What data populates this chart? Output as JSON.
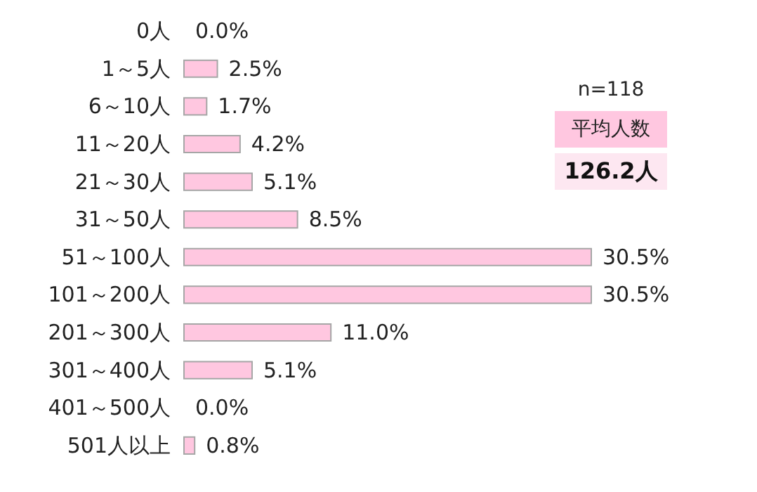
{
  "chart_data": {
    "type": "bar",
    "orientation": "horizontal",
    "categories": [
      "0人",
      "1～5人",
      "6～10人",
      "11～20人",
      "21～30人",
      "31～50人",
      "51～100人",
      "101～200人",
      "201～300人",
      "301～400人",
      "401～500人",
      "501人以上"
    ],
    "values": [
      0.0,
      2.5,
      1.7,
      4.2,
      5.1,
      8.5,
      30.5,
      30.5,
      11.0,
      5.1,
      0.0,
      0.8
    ],
    "value_labels": [
      "0.0%",
      "2.5%",
      "1.7%",
      "4.2%",
      "5.1%",
      "8.5%",
      "30.5%",
      "30.5%",
      "11.0%",
      "5.1%",
      "0.0%",
      "0.8%"
    ],
    "color": "#ffc7e0",
    "annotations": [
      "n=118",
      "平均人数",
      "126.2人"
    ]
  }
}
